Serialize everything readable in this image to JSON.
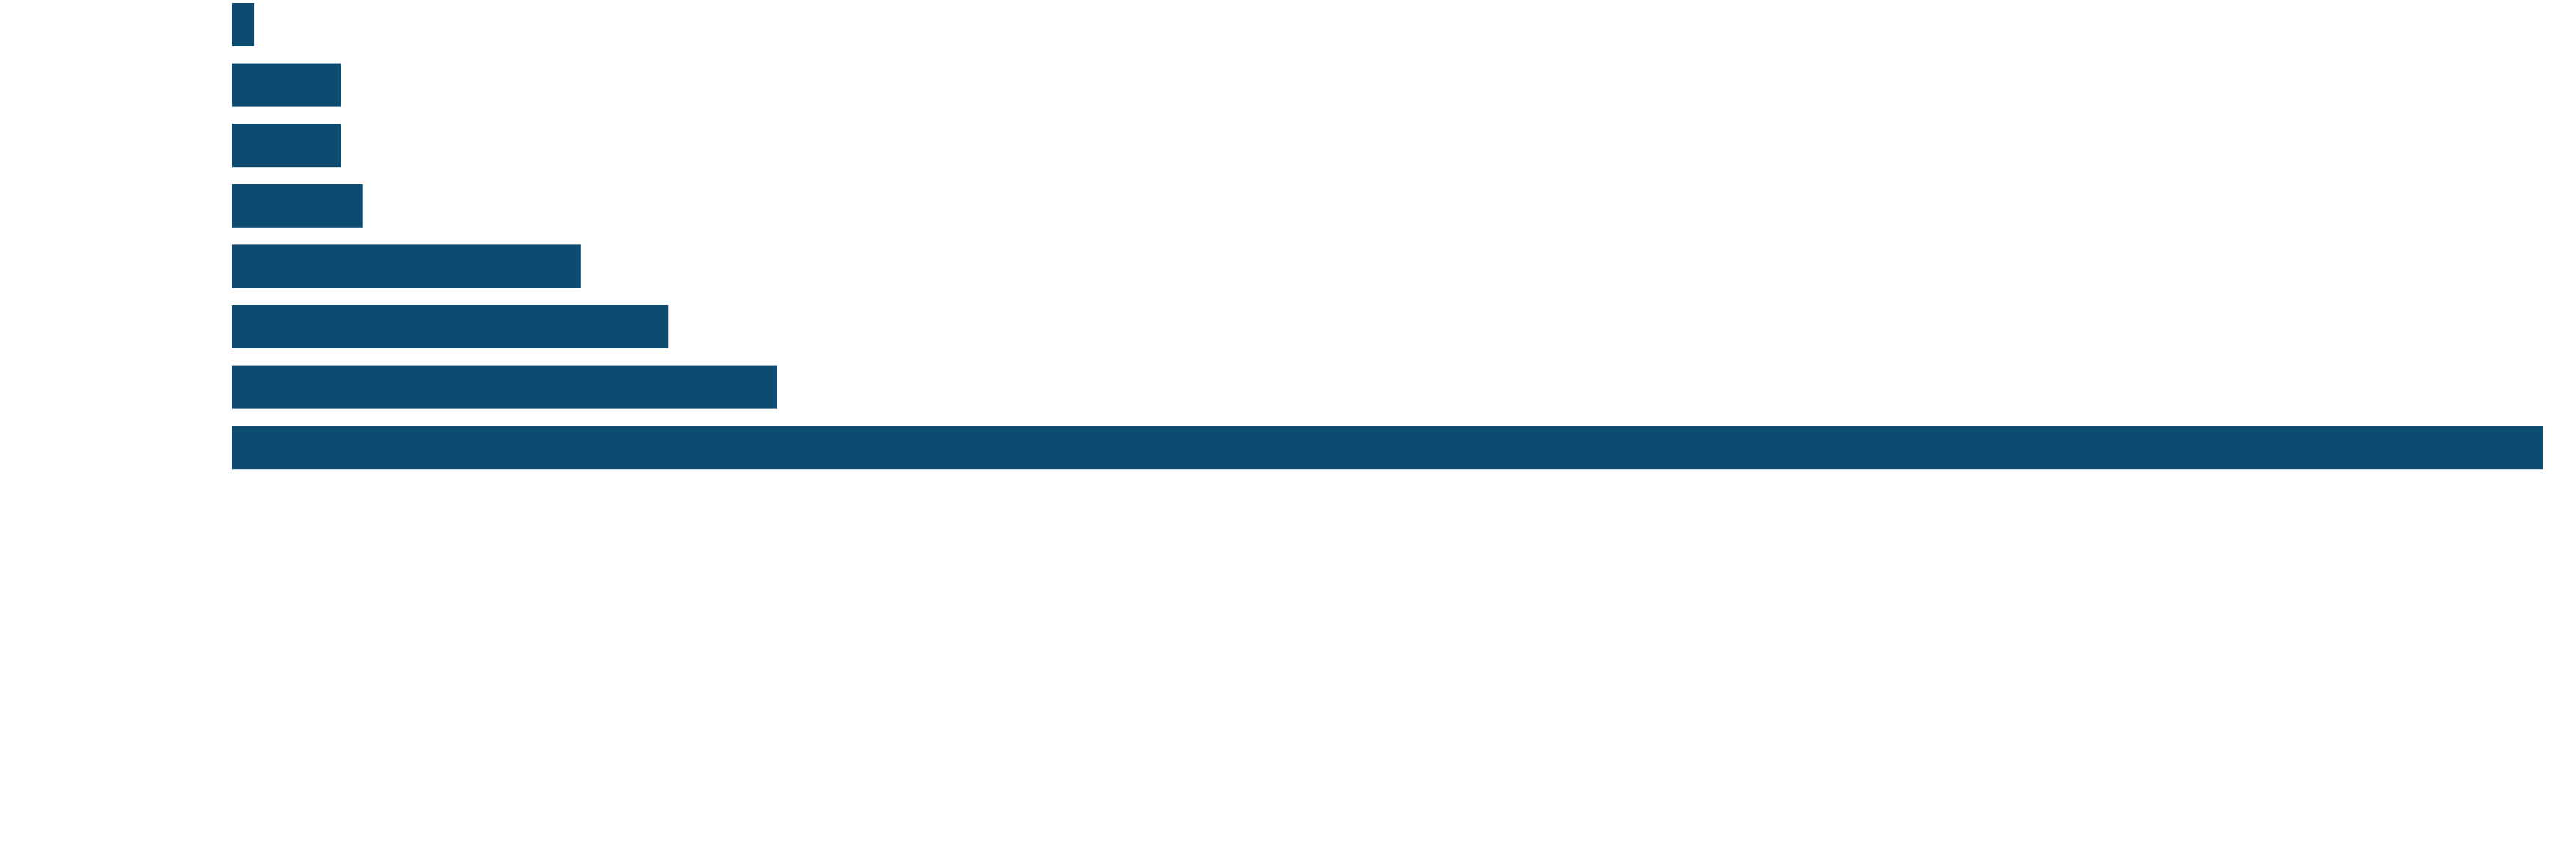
{
  "chart_data": {
    "type": "bar",
    "orientation": "horizontal",
    "categories": [
      null,
      null,
      null,
      null,
      null,
      null,
      null,
      null
    ],
    "values": [
      1,
      5,
      5,
      6,
      16,
      20,
      25,
      106
    ],
    "color": "#0e4b71",
    "xlim": [
      0,
      106
    ]
  }
}
